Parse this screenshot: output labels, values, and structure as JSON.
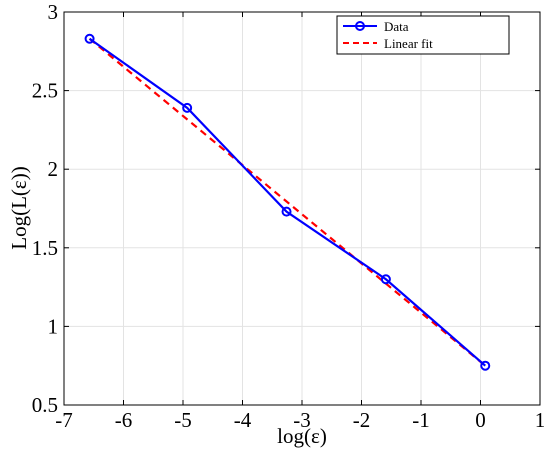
{
  "chart_data": {
    "type": "line",
    "title": "",
    "xlabel": "log(ε)",
    "ylabel": "Log(L(ε))",
    "xlim": [
      -7,
      1
    ],
    "ylim": [
      0.5,
      3
    ],
    "xticks": [
      -7,
      -6,
      -5,
      -4,
      -3,
      -2,
      -1,
      0,
      1
    ],
    "yticks": [
      0.5,
      1,
      1.5,
      2,
      2.5,
      3
    ],
    "xtick_labels": [
      "-7",
      "-6",
      "-5",
      "-4",
      "-3",
      "-2",
      "-1",
      "0",
      "1"
    ],
    "ytick_labels": [
      "0.5",
      "1",
      "1.5",
      "2",
      "2.5",
      "3"
    ],
    "grid": true,
    "legend_position": "top-right",
    "series": [
      {
        "name": "Data",
        "style": "solid-circle-markers",
        "color": "#0000ff",
        "x": [
          -6.57,
          -4.93,
          -3.26,
          -1.59,
          0.08
        ],
        "y": [
          2.83,
          2.39,
          1.73,
          1.3,
          0.75
        ]
      },
      {
        "name": "Linear fit",
        "style": "dashed",
        "color": "#ff0000",
        "x": [
          -6.57,
          0.08
        ],
        "y": [
          2.83,
          0.75
        ]
      }
    ]
  }
}
